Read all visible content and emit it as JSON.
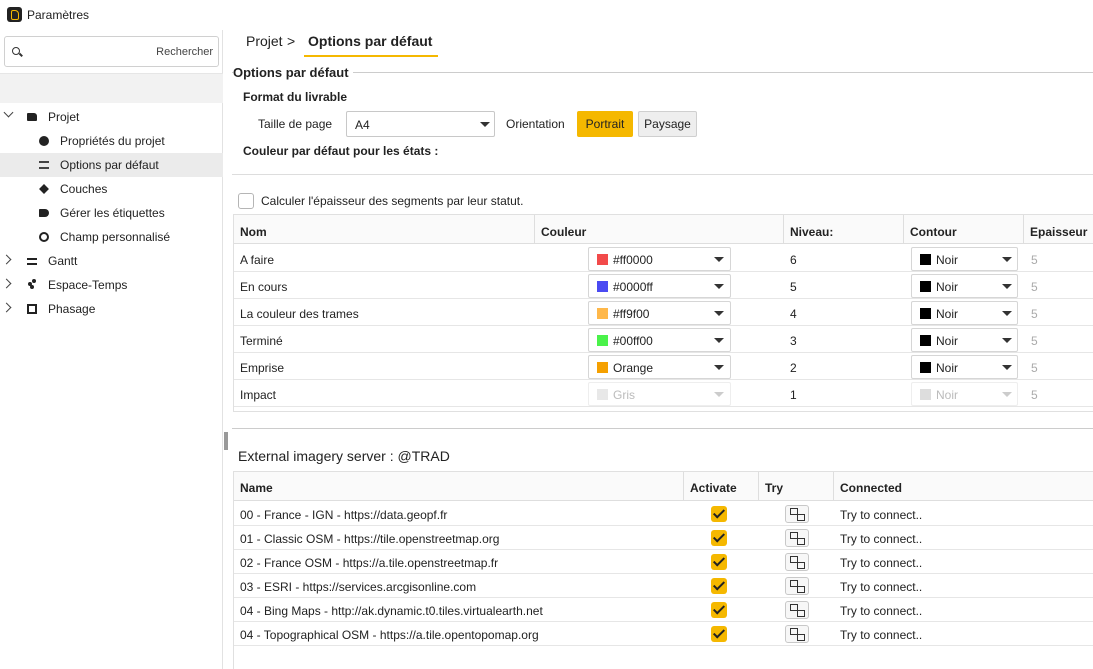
{
  "app": {
    "title": "Paramètres",
    "icon": "app-logo-icon"
  },
  "sidebar": {
    "search": {
      "placeholder": "Rechercher",
      "icon": "search-icon"
    },
    "items": [
      {
        "label": "Projet",
        "icon": "folder-icon",
        "expanded": true
      },
      {
        "label": "Propriétés du projet",
        "icon": "palette-icon"
      },
      {
        "label": "Options par défaut",
        "icon": "sliders-icon",
        "selected": true
      },
      {
        "label": "Couches",
        "icon": "layers-icon"
      },
      {
        "label": "Gérer les étiquettes",
        "icon": "tag-icon"
      },
      {
        "label": "Champ personnalisé",
        "icon": "circle-icon"
      },
      {
        "label": "Gantt",
        "icon": "gantt-icon",
        "expanded": false
      },
      {
        "label": "Espace-Temps",
        "icon": "scatter-icon",
        "expanded": false
      },
      {
        "label": "Phasage",
        "icon": "phasing-icon",
        "expanded": false
      }
    ]
  },
  "breadcrumb": {
    "parent": "Projet",
    "separator": ">",
    "current": "Options par défaut"
  },
  "options": {
    "section_title": "Options par défaut",
    "format_title": "Format du livrable",
    "page_size_label": "Taille de page",
    "page_size_value": "A4",
    "orientation_label": "Orientation",
    "portrait_label": "Portrait",
    "paysage_label": "Paysage",
    "orientation_selected": "Portrait",
    "color_title": "Couleur par défaut pour les états :",
    "calc_label": "Calculer l'épaisseur des segments par leur statut.",
    "calc_checked": false
  },
  "states_table": {
    "headers": [
      "Nom",
      "Couleur",
      "Niveau:",
      "Contour",
      "Epaisseur"
    ],
    "rows": [
      {
        "name": "A faire",
        "color_label": "#ff0000",
        "swatch": "#f24a4a",
        "level": "6",
        "contour": "Noir",
        "thickness": "5",
        "enabled": true
      },
      {
        "name": "En cours",
        "color_label": "#0000ff",
        "swatch": "#4a4af2",
        "level": "5",
        "contour": "Noir",
        "thickness": "5",
        "enabled": true
      },
      {
        "name": "La couleur des trames",
        "color_label": "#ff9f00",
        "swatch": "#ffb84a",
        "level": "4",
        "contour": "Noir",
        "thickness": "5",
        "enabled": true
      },
      {
        "name": "Terminé",
        "color_label": "#00ff00",
        "swatch": "#4af24a",
        "level": "3",
        "contour": "Noir",
        "thickness": "5",
        "enabled": true
      },
      {
        "name": "Emprise",
        "color_label": "Orange",
        "swatch": "#f5a000",
        "level": "2",
        "contour": "Noir",
        "thickness": "5",
        "enabled": true
      },
      {
        "name": "Impact",
        "color_label": "Gris",
        "swatch": "#e8e8e8",
        "level": "1",
        "contour": "Noir",
        "thickness": "5",
        "enabled": false
      }
    ]
  },
  "imagery": {
    "title": "External imagery server : @TRAD",
    "headers": [
      "Name",
      "Activate",
      "Try",
      "Connected"
    ],
    "rows": [
      {
        "name": "00 - France - IGN - https://data.geopf.fr",
        "activate": true,
        "connected": "Try to connect.."
      },
      {
        "name": "01 - Classic OSM - https://tile.openstreetmap.org",
        "activate": true,
        "connected": "Try to connect.."
      },
      {
        "name": "02 - France OSM - https://a.tile.openstreetmap.fr",
        "activate": true,
        "connected": "Try to connect.."
      },
      {
        "name": "03 - ESRI - https://services.arcgisonline.com",
        "activate": true,
        "connected": "Try to connect.."
      },
      {
        "name": "04 - Bing Maps - http://ak.dynamic.t0.tiles.virtualearth.net",
        "activate": true,
        "connected": "Try to connect.."
      },
      {
        "name": "04 - Topographical OSM - https://a.tile.opentopomap.org",
        "activate": true,
        "connected": "Try to connect.."
      }
    ]
  },
  "colors": {
    "accent": "#f5b800"
  }
}
